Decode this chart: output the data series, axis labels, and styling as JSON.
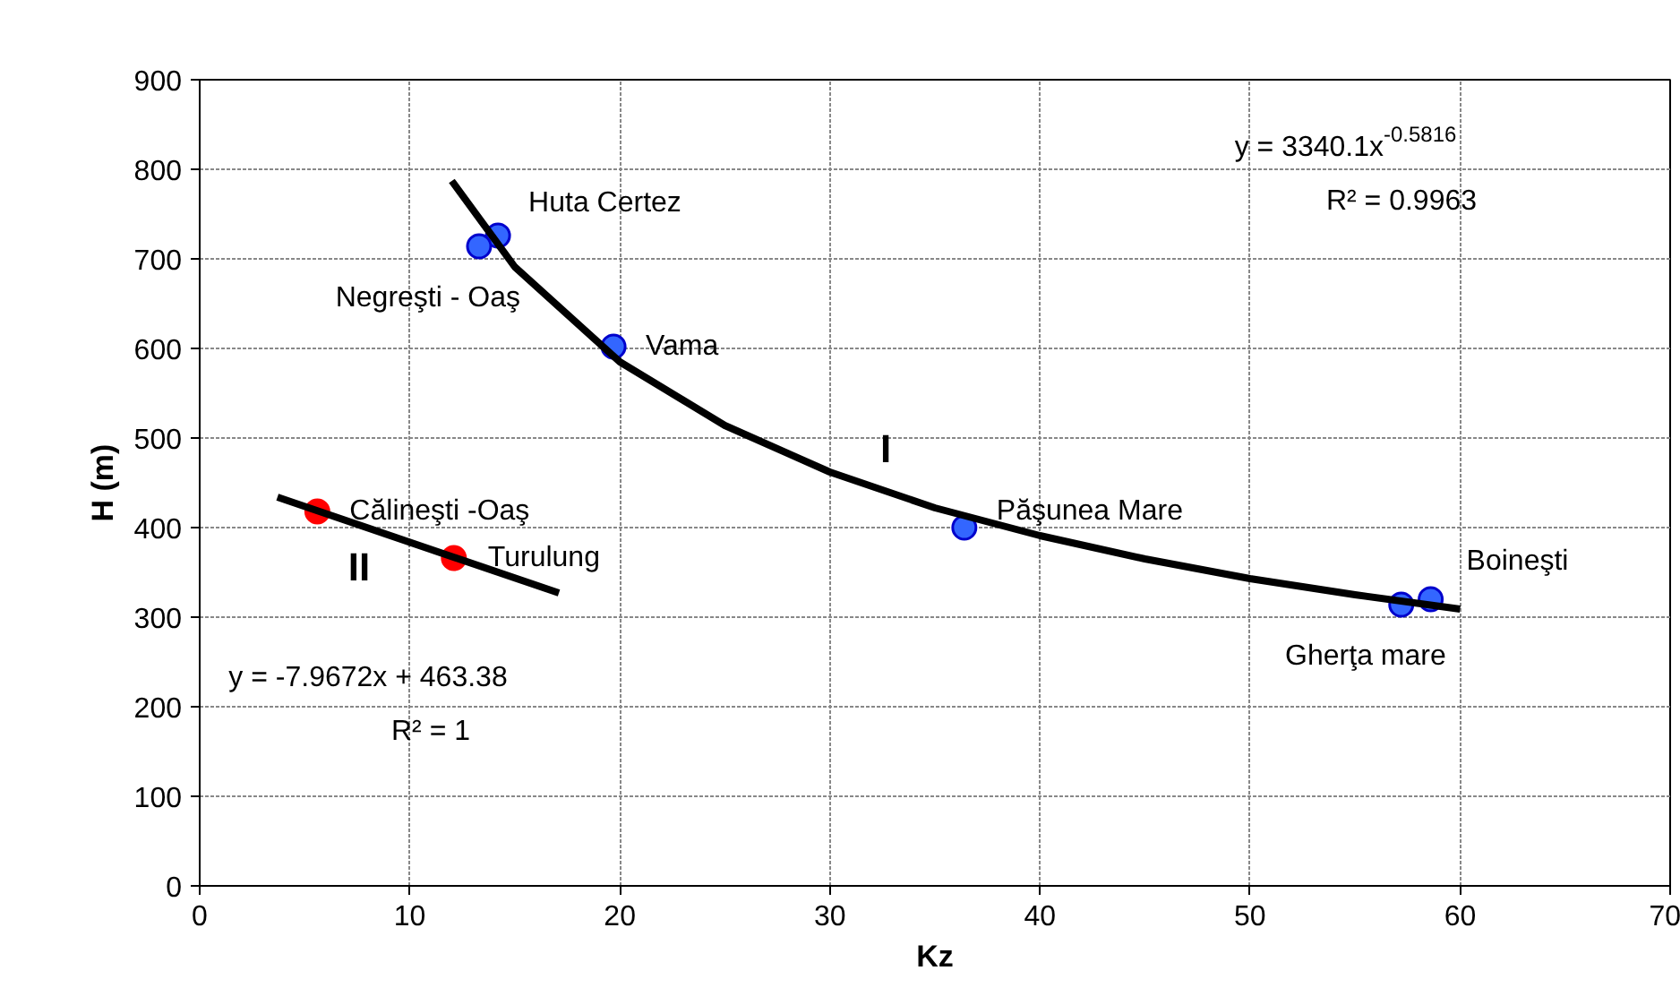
{
  "chart_data": {
    "type": "scatter",
    "xlabel": "Kz",
    "ylabel": "H (m)",
    "xlim": [
      0,
      70
    ],
    "ylim": [
      0,
      900
    ],
    "xticks": [
      0,
      10,
      20,
      30,
      40,
      50,
      60,
      70
    ],
    "yticks": [
      0,
      100,
      200,
      300,
      400,
      500,
      600,
      700,
      800,
      900
    ],
    "grid": true,
    "marker": "circle",
    "series": [
      {
        "color": "#3366ff",
        "x": [
          14.2,
          13.3,
          19.7,
          36.4,
          57.2,
          58.6
        ],
        "values": [
          726,
          714,
          602,
          400,
          314,
          320
        ]
      },
      {
        "color": "#ff0000",
        "x": [
          5.6,
          12.1
        ],
        "values": [
          418,
          366
        ]
      },
      {
        "type": "line",
        "marker": "none",
        "line_style": "solid",
        "color": "#000000",
        "x": [
          12,
          15,
          20,
          25,
          30,
          35,
          40,
          45,
          50,
          55,
          60
        ],
        "values": [
          787,
          691,
          585,
          514,
          462,
          422,
          391,
          365,
          343,
          325,
          309
        ]
      },
      {
        "type": "line",
        "marker": "none",
        "line_style": "solid",
        "color": "#000000",
        "x": [
          3.7,
          17.1
        ],
        "values": [
          434,
          327
        ]
      }
    ],
    "annotations": [
      {
        "text": "Huta Certez",
        "x": 14.2,
        "y": 726
      },
      {
        "text": "Negreşti - Oaş",
        "x": 13.3,
        "y": 714
      },
      {
        "text": "Vama",
        "x": 19.7,
        "y": 602
      },
      {
        "text": "Păşunea Mare",
        "x": 36.4,
        "y": 400
      },
      {
        "text": "Boineşti",
        "x": 58.6,
        "y": 320
      },
      {
        "text": "Gherţa mare",
        "x": 57.2,
        "y": 314
      },
      {
        "text": "Călineşti -Oaş",
        "x": 5.6,
        "y": 418
      },
      {
        "text": "Turulung",
        "x": 12.1,
        "y": 366
      },
      "I",
      "II",
      "y = 3340.1x$^{-0.5816}$",
      "R² = 0.9963",
      "y = -7.9672x + 463.38",
      "R² = 1"
    ]
  }
}
